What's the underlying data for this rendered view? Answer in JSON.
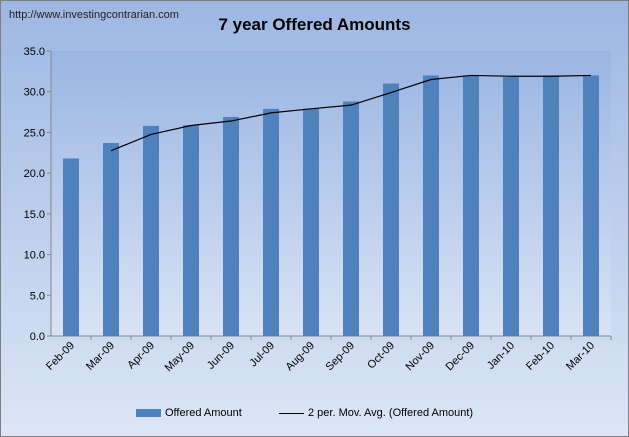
{
  "source_text": "http://www.investingcontrarian.com",
  "chart_data": {
    "type": "bar",
    "title": "7 year Offered Amounts",
    "categories": [
      "Feb-09",
      "Mar-09",
      "Apr-09",
      "May-09",
      "Jun-09",
      "Jul-09",
      "Aug-09",
      "Sep-09",
      "Oct-09",
      "Nov-09",
      "Dec-09",
      "Jan-10",
      "Feb-10",
      "Mar-10"
    ],
    "series": [
      {
        "name": "Offered Amount",
        "type": "bar",
        "color": "#4f81bd",
        "values": [
          21.8,
          23.7,
          25.8,
          25.9,
          26.9,
          27.9,
          27.9,
          28.8,
          31.0,
          32.0,
          32.0,
          31.8,
          32.0,
          32.0
        ]
      },
      {
        "name": "2 per. Mov. Avg. (Offered Amount)",
        "type": "line",
        "color": "#000000",
        "values": [
          null,
          22.75,
          24.75,
          25.85,
          26.4,
          27.4,
          27.9,
          28.35,
          29.9,
          31.5,
          32.0,
          31.9,
          31.9,
          32.0
        ]
      }
    ],
    "ylim": [
      0,
      35
    ],
    "yticks": [
      "0.0",
      "5.0",
      "10.0",
      "15.0",
      "20.0",
      "25.0",
      "30.0",
      "35.0"
    ],
    "grid": false,
    "legend": "bottom"
  }
}
